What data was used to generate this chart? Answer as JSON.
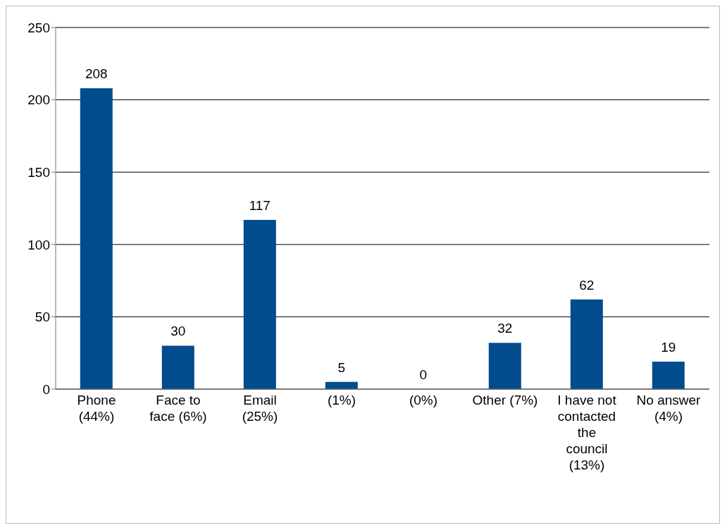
{
  "chart_data": {
    "type": "bar",
    "categories": [
      "Phone (44%)",
      "Face to face (6%)",
      "Email (25%)",
      "(1%)",
      "(0%)",
      "Other (7%)",
      "I have not contacted the council (13%)",
      "No answer (4%)"
    ],
    "values": [
      208,
      30,
      117,
      5,
      0,
      32,
      62,
      19
    ],
    "color": "#004c8c",
    "ylim": [
      0,
      250
    ],
    "yticks": [
      0,
      50,
      100,
      150,
      200,
      250
    ],
    "grid": "y",
    "data_labels": true
  }
}
